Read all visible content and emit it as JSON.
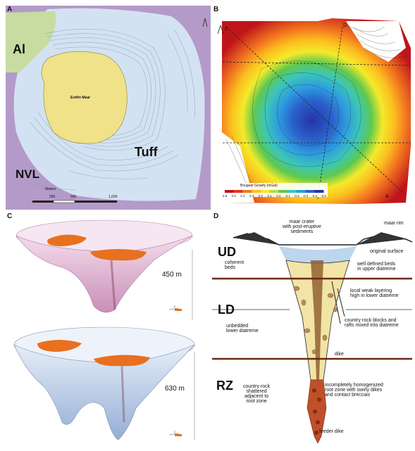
{
  "panels": {
    "a": {
      "label": "A",
      "units": {
        "al": "Al",
        "nvl": "NVL",
        "tuff": "Tuff"
      },
      "lake": "Eckfin Maar",
      "scale": {
        "unit": "Meters",
        "ticks": [
          "250",
          "500",
          "1,000"
        ]
      }
    },
    "b": {
      "label": "B",
      "corner_labels": [
        "C",
        "D",
        "A"
      ],
      "colorbar": {
        "title": "Bouguer Gravity (mGal)",
        "ticks": [
          "0.8",
          "0.5",
          "0.4",
          "0.3",
          "0.2",
          "0.1",
          "0.0",
          "-0.1",
          "-0.2",
          "-0.3",
          "-0.4",
          "-0.5"
        ],
        "colors": [
          "#c0141b",
          "#e8321e",
          "#f47a20",
          "#fbbf1f",
          "#f4ea2a",
          "#b6dd3c",
          "#5ec850",
          "#3cc6b8",
          "#2d9be0",
          "#2a62cc",
          "#2433a8"
        ]
      }
    },
    "c": {
      "label": "C",
      "depth_top": "450 m",
      "depth_bottom": "630 m"
    },
    "d": {
      "label": "D",
      "zones": {
        "ud": "UD",
        "ld": "LD",
        "rz": "RZ"
      },
      "annotations": {
        "maar_crater": "maar crater\nwith post-eruptive\nsediments",
        "maar_rim": "maar rim",
        "original_surface": "original surface",
        "coherent_beds": "coherent\nbeds",
        "well_defined": "well defined beds\nin upper diatreme",
        "local_weak": "local weak layering\nhigh in lower diatreme",
        "unbedded": "unbedded\nlower diatreme",
        "country_blocks": "country rock blocks and\nrafts mixed into diatreme",
        "dike": "dike",
        "country_shattered": "country rock\nshattered\nadjacent to\nroot zone",
        "incomplete": "incompletely homogenized\nroot zone with swirly dikes\nand contact breccias",
        "feeder": "feeder dike"
      }
    }
  }
}
